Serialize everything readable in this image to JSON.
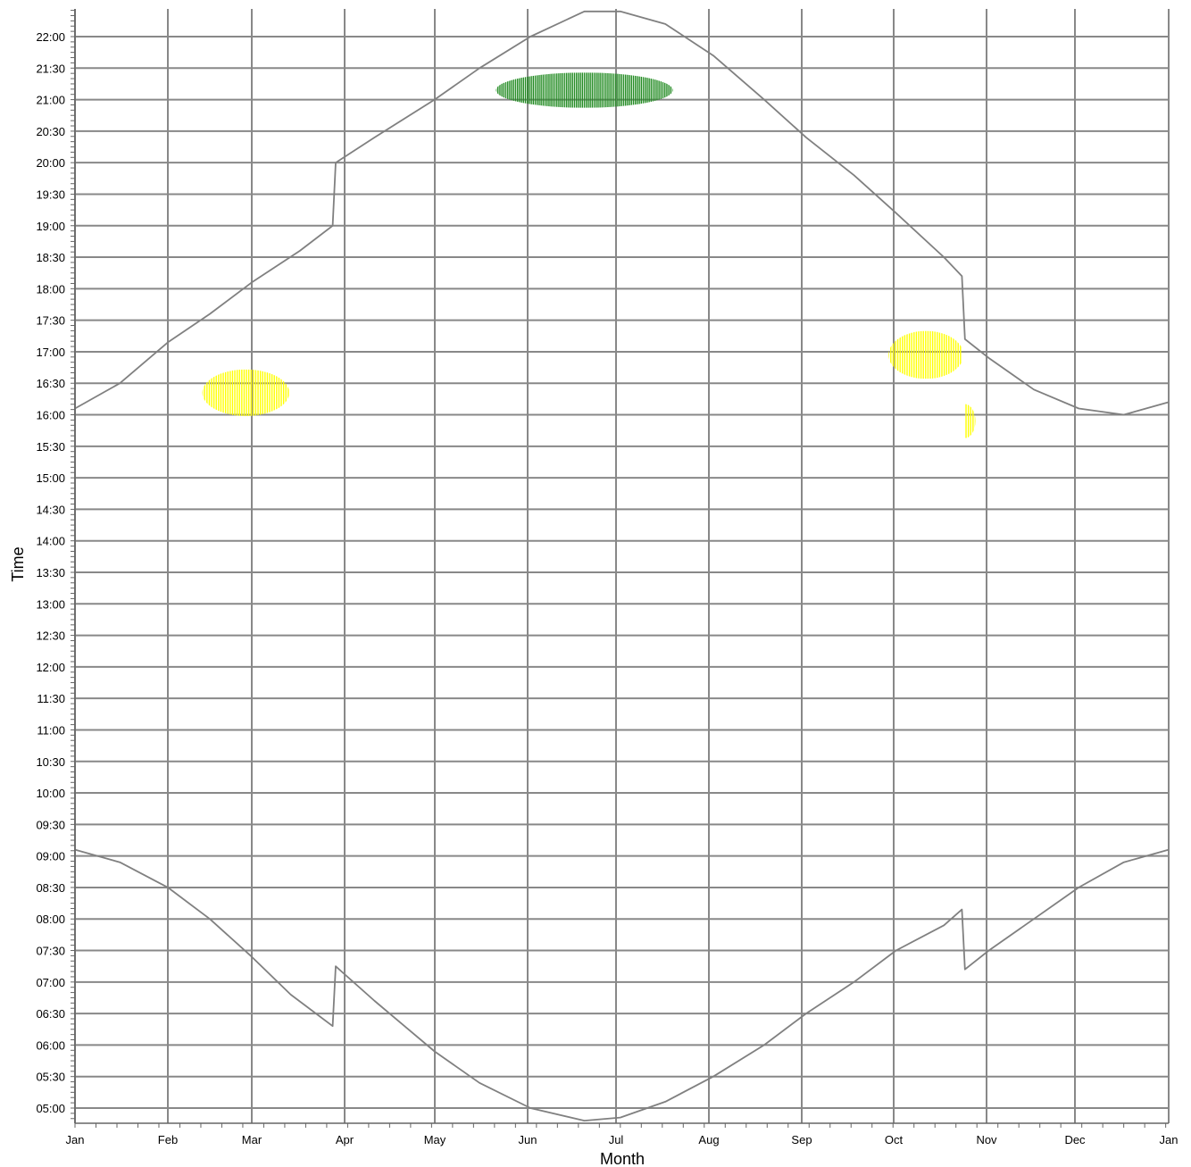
{
  "chart_data": {
    "type": "line",
    "xlabel": "Month",
    "ylabel": "Time",
    "x_ticks": [
      "Jan",
      "Feb",
      "Mar",
      "Apr",
      "May",
      "Jun",
      "Jul",
      "Aug",
      "Sep",
      "Oct",
      "Nov",
      "Dec",
      "Jan"
    ],
    "y_ticks": [
      "05:00",
      "05:30",
      "06:00",
      "06:30",
      "07:00",
      "07:30",
      "08:00",
      "08:30",
      "09:00",
      "09:30",
      "10:00",
      "10:30",
      "11:00",
      "11:30",
      "12:00",
      "12:30",
      "13:00",
      "13:30",
      "14:00",
      "14:30",
      "15:00",
      "15:30",
      "16:00",
      "16:30",
      "17:00",
      "17:30",
      "18:00",
      "18:30",
      "19:00",
      "19:30",
      "20:00",
      "20:30",
      "21:00",
      "21:30",
      "22:00"
    ],
    "xlim": [
      0,
      365
    ],
    "ylim_hours": [
      4.8,
      22.45
    ],
    "grid": true,
    "line_color": "#808080",
    "series": [
      {
        "points": [
          [
            0,
            16.1
          ],
          [
            15,
            16.5
          ],
          [
            31,
            17.15
          ],
          [
            45,
            17.6
          ],
          [
            59,
            18.1
          ],
          [
            75,
            18.6
          ],
          [
            86,
            19.0
          ],
          [
            87,
            20.0
          ],
          [
            100,
            20.4
          ],
          [
            120,
            21.0
          ],
          [
            135,
            21.5
          ],
          [
            152,
            22.0
          ],
          [
            170,
            22.4
          ],
          [
            182,
            22.4
          ],
          [
            197,
            22.2
          ],
          [
            213,
            21.7
          ],
          [
            230,
            21.0
          ],
          [
            244,
            20.4
          ],
          [
            260,
            19.8
          ],
          [
            274,
            19.2
          ],
          [
            290,
            18.5
          ],
          [
            296,
            18.2
          ],
          [
            297,
            17.2
          ],
          [
            305,
            16.9
          ],
          [
            320,
            16.4
          ],
          [
            335,
            16.1
          ],
          [
            350,
            16.0
          ],
          [
            365,
            16.2
          ]
        ]
      },
      {
        "points": [
          [
            0,
            9.1
          ],
          [
            15,
            8.9
          ],
          [
            31,
            8.5
          ],
          [
            45,
            8.0
          ],
          [
            59,
            7.4
          ],
          [
            72,
            6.8
          ],
          [
            86,
            6.3
          ],
          [
            87,
            7.25
          ],
          [
            100,
            6.7
          ],
          [
            120,
            5.9
          ],
          [
            135,
            5.4
          ],
          [
            152,
            5.0
          ],
          [
            170,
            4.8
          ],
          [
            182,
            4.85
          ],
          [
            197,
            5.1
          ],
          [
            213,
            5.5
          ],
          [
            230,
            6.0
          ],
          [
            244,
            6.5
          ],
          [
            260,
            7.0
          ],
          [
            274,
            7.5
          ],
          [
            290,
            7.9
          ],
          [
            296,
            8.15
          ],
          [
            297,
            7.2
          ],
          [
            305,
            7.5
          ],
          [
            320,
            8.0
          ],
          [
            335,
            8.5
          ],
          [
            350,
            8.9
          ],
          [
            365,
            9.1
          ]
        ]
      }
    ],
    "highlights": [
      {
        "color": "#ffff00",
        "cx": 57,
        "cy": 16.35,
        "rx": 14.5,
        "ry": 0.37
      },
      {
        "color": "#228b22",
        "cx": 170,
        "cy": 21.15,
        "rx": 29.5,
        "ry": 0.28
      },
      {
        "color": "#ffff00",
        "cx": 284,
        "cy": 16.95,
        "rx": 12.5,
        "ry": 0.38,
        "clip_right": 296
      },
      {
        "color": "#ffff00",
        "cx": 297,
        "cy": 15.9,
        "rx": 3.5,
        "ry": 0.27,
        "clip_left": 297
      }
    ]
  }
}
